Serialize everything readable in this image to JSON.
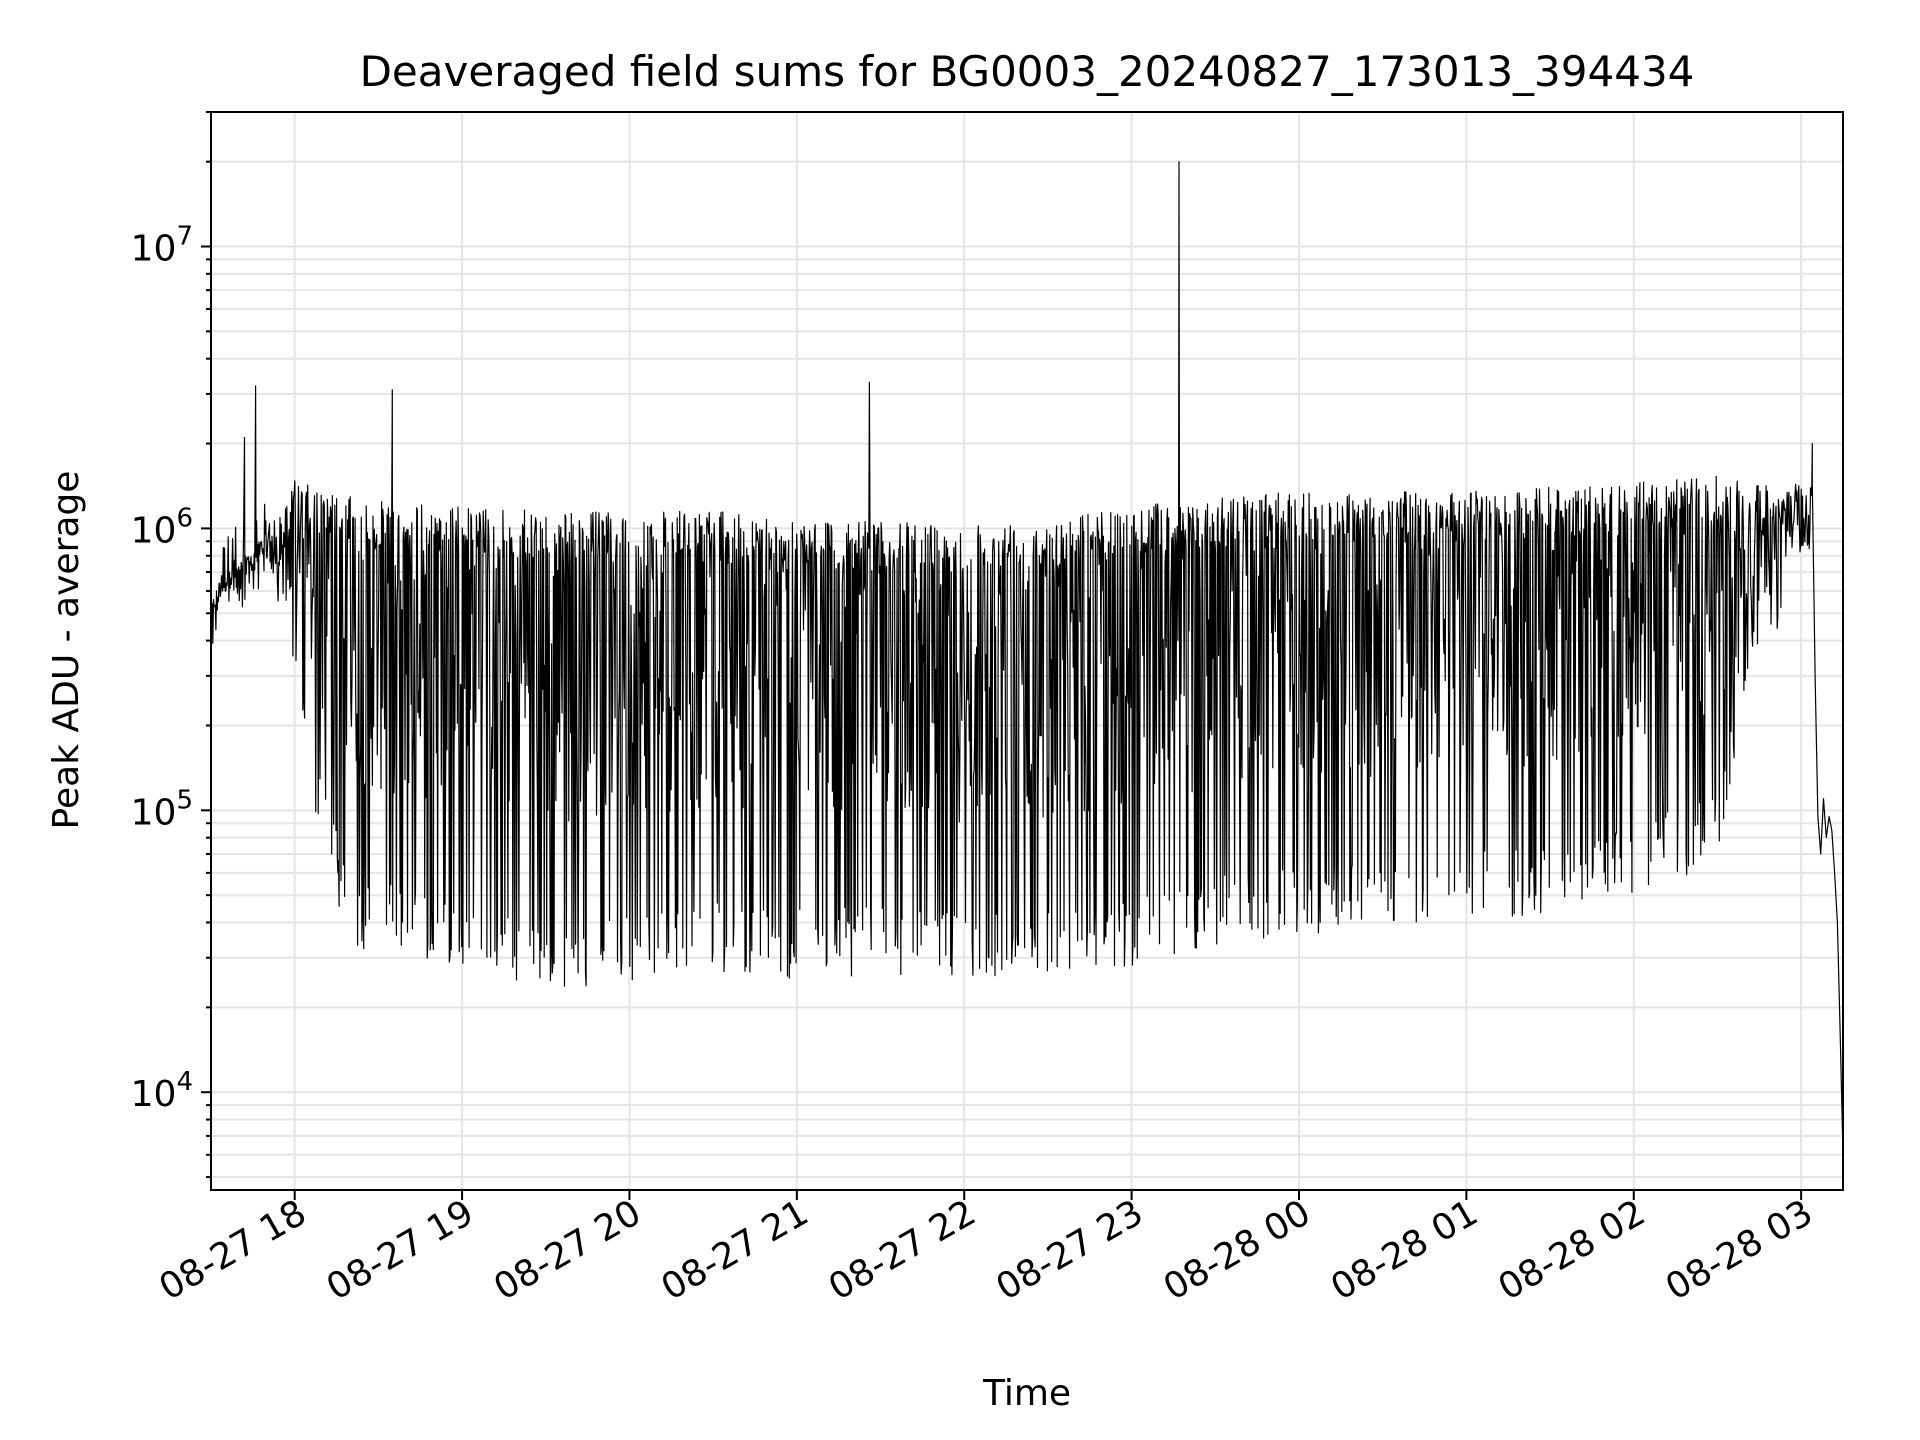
{
  "chart_data": {
    "type": "line",
    "title": "Deaveraged field sums for BG0003_20240827_173013_394434",
    "xlabel": "Time",
    "ylabel": "Peak ADU - average",
    "x_scale": "time",
    "y_scale": "log",
    "xlim": [
      "2024-08-27 17:30",
      "2024-08-28 03:15"
    ],
    "ylim": [
      4500,
      30000000
    ],
    "grid": true,
    "legend": "none",
    "line_color": "#000000",
    "grid_color": "#e5e5e5",
    "x_ticks": [
      "08-27 18",
      "08-27 19",
      "08-27 20",
      "08-27 21",
      "08-27 22",
      "08-27 23",
      "08-28 00",
      "08-28 01",
      "08-28 02",
      "08-28 03"
    ],
    "y_ticks": [
      {
        "value": 10000,
        "base": "10",
        "exp": "4"
      },
      {
        "value": 100000,
        "base": "10",
        "exp": "5"
      },
      {
        "value": 1000000,
        "base": "10",
        "exp": "6"
      },
      {
        "value": 10000000,
        "base": "10",
        "exp": "7"
      }
    ],
    "series": [
      {
        "upper": [
          [
            "2024-08-27 17:30",
            540000
          ],
          [
            "2024-08-27 17:34",
            700000
          ],
          [
            "2024-08-27 17:38",
            760000
          ],
          [
            "2024-08-27 17:42",
            780000
          ],
          [
            "2024-08-27 17:46",
            820000
          ],
          [
            "2024-08-27 17:50",
            1100000
          ],
          [
            "2024-08-27 17:55",
            1100000
          ],
          [
            "2024-08-27 18:00",
            1500000
          ],
          [
            "2024-08-27 18:10",
            1350000
          ],
          [
            "2024-08-27 18:30",
            1250000
          ],
          [
            "2024-08-27 19:00",
            1200000
          ],
          [
            "2024-08-27 19:30",
            1150000
          ],
          [
            "2024-08-27 20:00",
            1150000
          ],
          [
            "2024-08-27 20:30",
            1150000
          ],
          [
            "2024-08-27 21:00",
            1100000
          ],
          [
            "2024-08-27 21:30",
            1050000
          ],
          [
            "2024-08-27 22:00",
            1050000
          ],
          [
            "2024-08-27 22:30",
            1100000
          ],
          [
            "2024-08-27 23:00",
            1200000
          ],
          [
            "2024-08-27 23:30",
            1300000
          ],
          [
            "2024-08-28 00:00",
            1350000
          ],
          [
            "2024-08-28 00:30",
            1350000
          ],
          [
            "2024-08-28 01:00",
            1350000
          ],
          [
            "2024-08-28 01:30",
            1400000
          ],
          [
            "2024-08-28 02:00",
            1450000
          ],
          [
            "2024-08-28 02:30",
            1550000
          ],
          [
            "2024-08-28 02:50",
            1400000
          ],
          [
            "2024-08-28 03:00",
            1450000
          ]
        ],
        "lower": [
          [
            "2024-08-27 17:30",
            460000
          ],
          [
            "2024-08-27 17:40",
            600000
          ],
          [
            "2024-08-27 17:50",
            700000
          ],
          [
            "2024-08-27 17:55",
            400000
          ],
          [
            "2024-08-27 18:00",
            250000
          ],
          [
            "2024-08-27 18:10",
            70000
          ],
          [
            "2024-08-27 18:20",
            33000
          ],
          [
            "2024-08-27 18:40",
            30000
          ],
          [
            "2024-08-27 19:00",
            28000
          ],
          [
            "2024-08-27 19:30",
            22000
          ],
          [
            "2024-08-27 20:00",
            25000
          ],
          [
            "2024-08-27 20:30",
            27000
          ],
          [
            "2024-08-27 21:00",
            25000
          ],
          [
            "2024-08-27 21:30",
            26000
          ],
          [
            "2024-08-27 22:00",
            24000
          ],
          [
            "2024-08-27 22:30",
            25000
          ],
          [
            "2024-08-27 23:00",
            28000
          ],
          [
            "2024-08-27 23:30",
            33000
          ],
          [
            "2024-08-28 00:00",
            35000
          ],
          [
            "2024-08-28 00:30",
            38000
          ],
          [
            "2024-08-28 01:00",
            40000
          ],
          [
            "2024-08-28 01:30",
            42000
          ],
          [
            "2024-08-28 02:00",
            50000
          ],
          [
            "2024-08-28 02:30",
            65000
          ],
          [
            "2024-08-28 02:40",
            250000
          ],
          [
            "2024-08-28 02:50",
            400000
          ],
          [
            "2024-08-28 03:00",
            650000
          ]
        ],
        "spikes": [
          {
            "x": "2024-08-27 17:42",
            "y": 2100000
          },
          {
            "x": "2024-08-27 17:46",
            "y": 3200000
          },
          {
            "x": "2024-08-27 18:35",
            "y": 3100000
          },
          {
            "x": "2024-08-27 21:26",
            "y": 3300000
          },
          {
            "x": "2024-08-27 23:17",
            "y": 20000000
          },
          {
            "x": "2024-08-28 03:04",
            "y": 2000000
          }
        ],
        "tail": [
          [
            "2024-08-28 03:04",
            1450000
          ],
          [
            "2024-08-28 03:05",
            300000
          ],
          [
            "2024-08-28 03:06",
            95000
          ],
          [
            "2024-08-28 03:07",
            70000
          ],
          [
            "2024-08-28 03:08",
            110000
          ],
          [
            "2024-08-28 03:09",
            80000
          ],
          [
            "2024-08-28 03:10",
            95000
          ],
          [
            "2024-08-28 03:11",
            85000
          ],
          [
            "2024-08-28 03:12",
            60000
          ],
          [
            "2024-08-28 03:13",
            40000
          ],
          [
            "2024-08-28 03:14",
            16000
          ],
          [
            "2024-08-28 03:15",
            6000
          ]
        ]
      }
    ]
  }
}
